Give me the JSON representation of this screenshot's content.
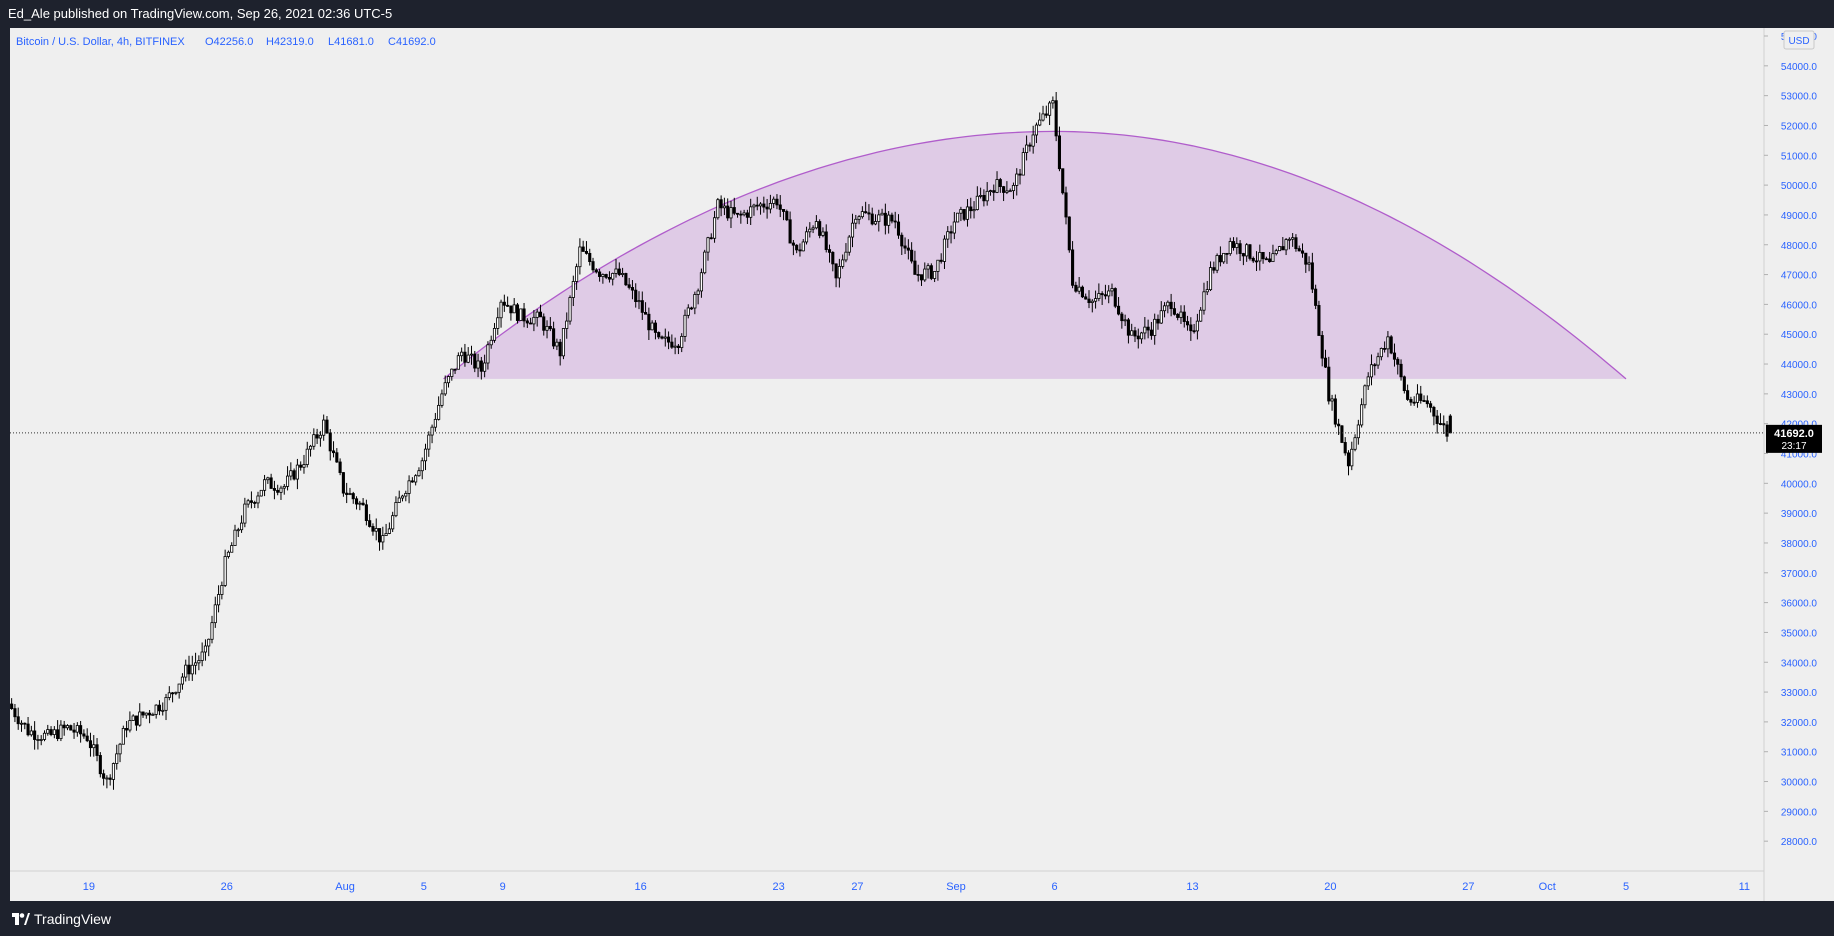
{
  "header": {
    "published_text": "Ed_Ale published on TradingView.com, Sep 26, 2021 02:36 UTC-5"
  },
  "legend": {
    "symbol": "Bitcoin / U.S. Dollar, 4h, BITFINEX",
    "open": "O42256.0",
    "high": "H42319.0",
    "low": "L41681.0",
    "close": "C41692.0"
  },
  "footer": {
    "brand": "TradingView",
    "logo_icon": "tradingview-logo-icon"
  },
  "price_axis": {
    "currency_label": "USD",
    "last_price_label": "41692.0",
    "countdown_label": "23:17"
  },
  "colors": {
    "background": "#efefef",
    "frame": "#1e222d",
    "axis_text": "#2962ff",
    "candle": "#000000",
    "arc_fill": "#dcc4e4",
    "arc_stroke": "#b05dcb"
  },
  "chart_data": {
    "type": "candlestick",
    "symbol": "Bitcoin / U.S. Dollar",
    "interval": "4h",
    "exchange": "BITFINEX",
    "last_ohlc": {
      "open": 42256.0,
      "high": 42319.0,
      "low": 41681.0,
      "close": 41692.0
    },
    "last_price": 41692.0,
    "y_range": [
      27000,
      55000
    ],
    "y_ticks": [
      28000,
      29000,
      30000,
      31000,
      32000,
      33000,
      34000,
      35000,
      36000,
      37000,
      38000,
      39000,
      40000,
      41000,
      42000,
      43000,
      44000,
      45000,
      46000,
      47000,
      48000,
      49000,
      50000,
      51000,
      52000,
      53000,
      54000,
      55000
    ],
    "x_range": [
      "2021-07-15",
      "2021-10-12"
    ],
    "x_ticks": [
      {
        "label": "19",
        "date": "2021-07-19"
      },
      {
        "label": "26",
        "date": "2021-07-26"
      },
      {
        "label": "Aug",
        "date": "2021-08-01"
      },
      {
        "label": "5",
        "date": "2021-08-05"
      },
      {
        "label": "9",
        "date": "2021-08-09"
      },
      {
        "label": "16",
        "date": "2021-08-16"
      },
      {
        "label": "23",
        "date": "2021-08-23"
      },
      {
        "label": "27",
        "date": "2021-08-27"
      },
      {
        "label": "Sep",
        "date": "2021-09-01"
      },
      {
        "label": "6",
        "date": "2021-09-06"
      },
      {
        "label": "13",
        "date": "2021-09-13"
      },
      {
        "label": "20",
        "date": "2021-09-20"
      },
      {
        "label": "27",
        "date": "2021-09-27"
      },
      {
        "label": "Oct",
        "date": "2021-10-01"
      },
      {
        "label": "5",
        "date": "2021-10-05"
      },
      {
        "label": "11",
        "date": "2021-10-11"
      }
    ],
    "price_path": [
      [
        "2021-07-15",
        32600
      ],
      [
        "2021-07-16",
        31700
      ],
      [
        "2021-07-17",
        31500
      ],
      [
        "2021-07-18",
        31800
      ],
      [
        "2021-07-19",
        31500
      ],
      [
        "2021-07-20",
        30000
      ],
      [
        "2021-07-21",
        31900
      ],
      [
        "2021-07-22",
        32300
      ],
      [
        "2021-07-23",
        32700
      ],
      [
        "2021-07-24",
        33700
      ],
      [
        "2021-07-25",
        34300
      ],
      [
        "2021-07-26",
        37300
      ],
      [
        "2021-07-27",
        39100
      ],
      [
        "2021-07-28",
        40000
      ],
      [
        "2021-07-29",
        39900
      ],
      [
        "2021-07-30",
        40800
      ],
      [
        "2021-07-31",
        42000
      ],
      [
        "2021-08-01",
        39800
      ],
      [
        "2021-08-02",
        39200
      ],
      [
        "2021-08-03",
        38000
      ],
      [
        "2021-08-04",
        39700
      ],
      [
        "2021-08-05",
        40800
      ],
      [
        "2021-08-06",
        43000
      ],
      [
        "2021-08-07",
        44400
      ],
      [
        "2021-08-08",
        43800
      ],
      [
        "2021-08-09",
        46200
      ],
      [
        "2021-08-10",
        45600
      ],
      [
        "2021-08-11",
        45500
      ],
      [
        "2021-08-12",
        44400
      ],
      [
        "2021-08-13",
        47800
      ],
      [
        "2021-08-14",
        47100
      ],
      [
        "2021-08-15",
        47000
      ],
      [
        "2021-08-16",
        46000
      ],
      [
        "2021-08-17",
        44700
      ],
      [
        "2021-08-18",
        44800
      ],
      [
        "2021-08-19",
        46700
      ],
      [
        "2021-08-20",
        49300
      ],
      [
        "2021-08-21",
        48900
      ],
      [
        "2021-08-22",
        49300
      ],
      [
        "2021-08-23",
        49500
      ],
      [
        "2021-08-24",
        47700
      ],
      [
        "2021-08-25",
        48900
      ],
      [
        "2021-08-26",
        46800
      ],
      [
        "2021-08-27",
        49100
      ],
      [
        "2021-08-28",
        48900
      ],
      [
        "2021-08-29",
        48800
      ],
      [
        "2021-08-30",
        47000
      ],
      [
        "2021-08-31",
        47100
      ],
      [
        "2021-09-01",
        48800
      ],
      [
        "2021-09-02",
        49300
      ],
      [
        "2021-09-03",
        50000
      ],
      [
        "2021-09-04",
        49900
      ],
      [
        "2021-09-05",
        51800
      ],
      [
        "2021-09-06",
        52700
      ],
      [
        "2021-09-07",
        46800
      ],
      [
        "2021-09-08",
        46100
      ],
      [
        "2021-09-09",
        46400
      ],
      [
        "2021-09-10",
        44900
      ],
      [
        "2021-09-11",
        45200
      ],
      [
        "2021-09-12",
        46100
      ],
      [
        "2021-09-13",
        44900
      ],
      [
        "2021-09-14",
        47100
      ],
      [
        "2021-09-15",
        48100
      ],
      [
        "2021-09-16",
        47700
      ],
      [
        "2021-09-17",
        47300
      ],
      [
        "2021-09-18",
        48300
      ],
      [
        "2021-09-19",
        47300
      ],
      [
        "2021-09-20",
        43000
      ],
      [
        "2021-09-21",
        40700
      ],
      [
        "2021-09-22",
        43600
      ],
      [
        "2021-09-23",
        44900
      ],
      [
        "2021-09-24",
        42800
      ],
      [
        "2021-09-25",
        42700
      ],
      [
        "2021-09-26",
        41692
      ]
    ],
    "annotations": [
      {
        "type": "arc",
        "label": "rounded top",
        "start": [
          "2021-08-06",
          43500
        ],
        "peak": [
          "2021-09-06",
          51800
        ],
        "end": [
          "2021-10-05",
          43500
        ]
      }
    ]
  }
}
